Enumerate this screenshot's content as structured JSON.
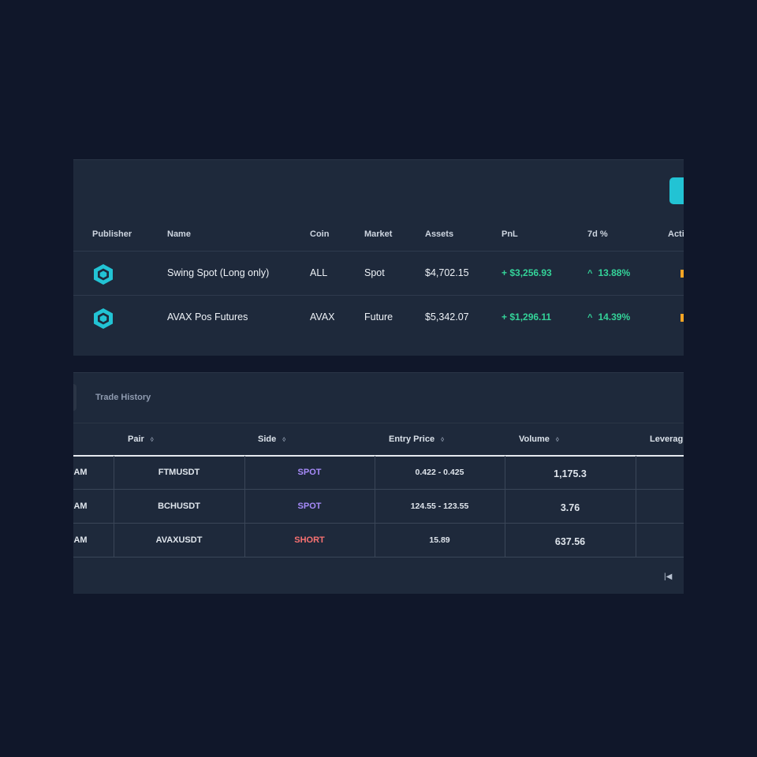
{
  "bots": {
    "columns": {
      "publisher": "Publisher",
      "name": "Name",
      "coin": "Coin",
      "market": "Market",
      "assets": "Assets",
      "pnl": "PnL",
      "change7d": "7d %",
      "action": "Acti"
    },
    "rows": [
      {
        "publisher_icon": "hexagon-cube-icon",
        "name": "Swing Spot (Long only)",
        "coin": "ALL",
        "market": "Spot",
        "assets": "$4,702.15",
        "pnl": "+ $3,256.93",
        "change7d": "13.88%"
      },
      {
        "publisher_icon": "hexagon-cube-icon",
        "name": "AVAX Pos Futures",
        "coin": "AVAX",
        "market": "Future",
        "assets": "$5,342.07",
        "pnl": "+ $1,296.11",
        "change7d": "14.39%"
      }
    ],
    "colors": {
      "accent": "#22c3d4",
      "positive": "#34d399",
      "action": "#f5a524"
    }
  },
  "history": {
    "tab_label": "Trade History",
    "columns": {
      "pair": "Pair",
      "side": "Side",
      "entry_price": "Entry Price",
      "volume": "Volume",
      "leverage": "Leverag"
    },
    "rows": [
      {
        "time": "AM",
        "pair": "FTMUSDT",
        "side": "SPOT",
        "entry_price": "0.422 - 0.425",
        "volume": "1,175.3"
      },
      {
        "time": "AM",
        "pair": "BCHUSDT",
        "side": "SPOT",
        "entry_price": "124.55 - 123.55",
        "volume": "3.76"
      },
      {
        "time": "AM",
        "pair": "AVAXUSDT",
        "side": "SHORT",
        "entry_price": "15.89",
        "volume": "637.56"
      }
    ],
    "colors": {
      "spot": "#a78bfa",
      "short": "#f87171"
    }
  }
}
